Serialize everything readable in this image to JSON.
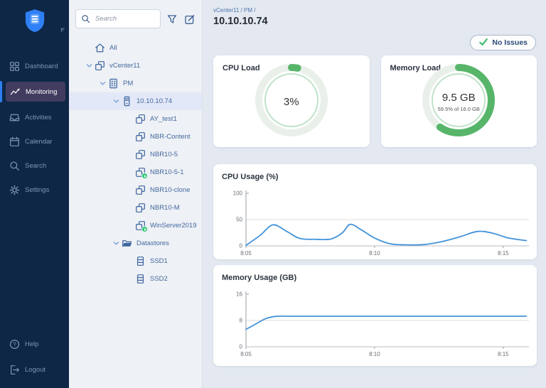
{
  "colors": {
    "sidebar_bg": "#0e2746",
    "sidebar_active_bg": "#413c60",
    "accent_blue": "#2e7ef2",
    "panel_bg": "#eef1f5",
    "main_bg": "#e4e9f1",
    "selected_row_bg": "#e2e8f7",
    "green": "#57b56a",
    "green_track": "#e9f0ea",
    "green_inner_ring": "#bfe2c8",
    "line_blue": "#4293d9",
    "grid_gray": "#dddddd",
    "check_green": "#3cb96d"
  },
  "sidebar": {
    "logo_icon": "shield-logo",
    "collapse_icon": "collapse",
    "items": [
      {
        "id": "dashboard",
        "label": "Dashboard",
        "icon": "dashboard",
        "active": false
      },
      {
        "id": "monitoring",
        "label": "Monitoring",
        "icon": "monitoring",
        "active": true
      },
      {
        "id": "activities",
        "label": "Activities",
        "icon": "activities",
        "active": false
      },
      {
        "id": "calendar",
        "label": "Calendar",
        "icon": "calendar",
        "active": false
      },
      {
        "id": "search",
        "label": "Search",
        "icon": "search",
        "active": false
      },
      {
        "id": "settings",
        "label": "Settings",
        "icon": "settings",
        "active": false
      }
    ],
    "footer_items": [
      {
        "id": "help",
        "label": "Help",
        "icon": "help",
        "active": false
      },
      {
        "id": "logout",
        "label": "Logout",
        "icon": "logout",
        "active": false
      }
    ]
  },
  "tree_panel": {
    "search": {
      "placeholder": "Search"
    },
    "actions": [
      {
        "id": "filter",
        "icon": "funnel"
      },
      {
        "id": "edit",
        "icon": "edit"
      }
    ],
    "nodes": [
      {
        "label": "All",
        "icon": "home",
        "level": 1,
        "chevron": false,
        "selected": false,
        "badge": false
      },
      {
        "label": "vCenter11",
        "icon": "vcenter",
        "level": 1,
        "chevron": true,
        "selected": false,
        "badge": false
      },
      {
        "label": "PM",
        "icon": "host",
        "level": 2,
        "chevron": true,
        "selected": false,
        "badge": false
      },
      {
        "label": "10.10.10.74",
        "icon": "server",
        "level": 3,
        "chevron": true,
        "selected": true,
        "badge": false
      },
      {
        "label": "AY_test1",
        "icon": "vm",
        "level": 4,
        "chevron": false,
        "selected": false,
        "badge": false
      },
      {
        "label": "NBR-Content",
        "icon": "vm",
        "level": 4,
        "chevron": false,
        "selected": false,
        "badge": false
      },
      {
        "label": "NBR10-5",
        "icon": "vm",
        "level": 4,
        "chevron": false,
        "selected": false,
        "badge": false
      },
      {
        "label": "NBR10-5-1",
        "icon": "vm",
        "level": 4,
        "chevron": false,
        "selected": false,
        "badge": true
      },
      {
        "label": "NBR10-clone",
        "icon": "vm",
        "level": 4,
        "chevron": false,
        "selected": false,
        "badge": false
      },
      {
        "label": "NBR10-M",
        "icon": "vm",
        "level": 4,
        "chevron": false,
        "selected": false,
        "badge": false
      },
      {
        "label": "WinServer2019",
        "icon": "vm",
        "level": 4,
        "chevron": false,
        "selected": false,
        "badge": true
      },
      {
        "label": "Datastores",
        "icon": "folder",
        "level": 3,
        "chevron": true,
        "selected": false,
        "badge": false
      },
      {
        "label": "SSD1",
        "icon": "datastore",
        "level": 4,
        "chevron": false,
        "selected": false,
        "badge": false
      },
      {
        "label": "SSD2",
        "icon": "datastore",
        "level": 4,
        "chevron": false,
        "selected": false,
        "badge": false
      }
    ]
  },
  "header": {
    "breadcrumb": "vCenter11 / PM /",
    "title": "10.10.10.74",
    "status": {
      "label": "No Issues",
      "icon": "check"
    }
  },
  "gauges": [
    {
      "id": "cpu-load",
      "title": "CPU Load",
      "percent": 3,
      "center_text": "3%",
      "sub_text": ""
    },
    {
      "id": "memory-load",
      "title": "Memory Load",
      "percent": 59.5,
      "center_text": "9.5 GB",
      "sub_text": "59.5% of 16.0 GB"
    }
  ],
  "chart_data": [
    {
      "type": "line",
      "title": "CPU Usage (%)",
      "xlabel": "",
      "ylabel": "",
      "ylim": [
        0,
        100
      ],
      "yticks": [
        0,
        50,
        100
      ],
      "grid": "mid-horizontal",
      "legend": "none",
      "x_minutes_range": [
        0,
        11
      ],
      "x_ticks": [
        {
          "minute": 0,
          "label": "8:05"
        },
        {
          "minute": 5,
          "label": "8:10"
        },
        {
          "minute": 10,
          "label": "8:15"
        }
      ],
      "series": [
        {
          "name": "CPU Usage",
          "color": "#4293d9",
          "points": [
            [
              0,
              1
            ],
            [
              0.55,
              20
            ],
            [
              1.05,
              40
            ],
            [
              1.6,
              27
            ],
            [
              2.1,
              14
            ],
            [
              2.75,
              12.5
            ],
            [
              3.3,
              13
            ],
            [
              3.75,
              25
            ],
            [
              4.05,
              41
            ],
            [
              4.5,
              30
            ],
            [
              5,
              15
            ],
            [
              5.6,
              4
            ],
            [
              6.2,
              2
            ],
            [
              6.9,
              2.5
            ],
            [
              7.6,
              8
            ],
            [
              8.3,
              17
            ],
            [
              9,
              27.5
            ],
            [
              9.6,
              24
            ],
            [
              10.2,
              15
            ],
            [
              10.9,
              10
            ]
          ]
        }
      ]
    },
    {
      "type": "line",
      "title": "Memory Usage (GB)",
      "xlabel": "",
      "ylabel": "",
      "ylim": [
        0,
        16
      ],
      "yticks": [
        0,
        8,
        16
      ],
      "grid": "mid-horizontal",
      "legend": "none",
      "x_minutes_range": [
        0,
        11
      ],
      "x_ticks": [
        {
          "minute": 0,
          "label": "8:05"
        },
        {
          "minute": 5,
          "label": "8:10"
        },
        {
          "minute": 10,
          "label": "8:15"
        }
      ],
      "series": [
        {
          "name": "Memory Usage",
          "color": "#4293d9",
          "points": [
            [
              0,
              5.3
            ],
            [
              0.35,
              6.8
            ],
            [
              0.75,
              8.5
            ],
            [
              1.15,
              9.25
            ],
            [
              1.6,
              9.3
            ],
            [
              3,
              9.3
            ],
            [
              5,
              9.3
            ],
            [
              7,
              9.3
            ],
            [
              9,
              9.3
            ],
            [
              10.9,
              9.3
            ]
          ]
        }
      ]
    }
  ]
}
